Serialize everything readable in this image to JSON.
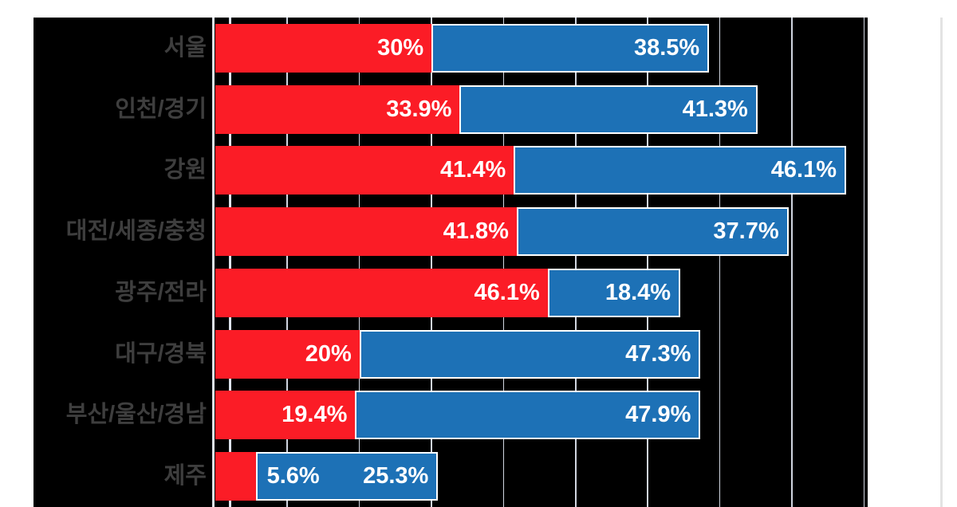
{
  "chart_data": {
    "type": "bar",
    "orientation": "horizontal-stacked",
    "title": "",
    "xlabel": "",
    "ylabel": "",
    "axis": {
      "min_percent": 0,
      "max_visible_percent": 90.5,
      "gridline_percents": [
        2,
        10,
        20,
        30,
        40,
        50,
        60,
        70,
        80,
        90
      ]
    },
    "legend": "none",
    "categories": [
      "서울",
      "인천/경기",
      "강원",
      "대전/세종/충청",
      "광주/전라",
      "대구/경북",
      "부산/울산/경남",
      "제주"
    ],
    "series": [
      {
        "name": "red-series",
        "values": [
          30,
          33.9,
          41.4,
          41.8,
          46.1,
          20,
          19.4,
          5.6
        ]
      },
      {
        "name": "blue-series",
        "values": [
          38.5,
          41.3,
          46.1,
          37.7,
          18.4,
          47.3,
          47.9,
          25.3
        ]
      }
    ],
    "rows": [
      {
        "region": "서울",
        "red": {
          "value": 30,
          "label": "30%"
        },
        "blue": {
          "value": 38.5,
          "label": "38.5%"
        }
      },
      {
        "region": "인천/경기",
        "red": {
          "value": 33.9,
          "label": "33.9%"
        },
        "blue": {
          "value": 41.3,
          "label": "41.3%"
        }
      },
      {
        "region": "강원",
        "red": {
          "value": 41.4,
          "label": "41.4%"
        },
        "blue": {
          "value": 46.1,
          "label": "46.1%"
        }
      },
      {
        "region": "대전/세종/충청",
        "red": {
          "value": 41.8,
          "label": "41.8%"
        },
        "blue": {
          "value": 37.7,
          "label": "37.7%"
        }
      },
      {
        "region": "광주/전라",
        "red": {
          "value": 46.1,
          "label": "46.1%"
        },
        "blue": {
          "value": 18.4,
          "label": "18.4%"
        }
      },
      {
        "region": "대구/경북",
        "red": {
          "value": 20,
          "label": "20%"
        },
        "blue": {
          "value": 47.3,
          "label": "47.3%"
        }
      },
      {
        "region": "부산/울산/경남",
        "red": {
          "value": 19.4,
          "label": "19.4%"
        },
        "blue": {
          "value": 47.9,
          "label": "47.9%"
        }
      },
      {
        "region": "제주",
        "red": {
          "value": 5.6,
          "label": "5.6%",
          "label_outside": true
        },
        "blue": {
          "value": 25.3,
          "label": "25.3%"
        }
      }
    ]
  },
  "colors": {
    "red_series": "#fb1c26",
    "blue_series": "#1d71b6",
    "plot_background": "#000000",
    "gridline": "#d0d5e0",
    "category_label": "#3e3e3e",
    "value_label": "#ffffff"
  }
}
